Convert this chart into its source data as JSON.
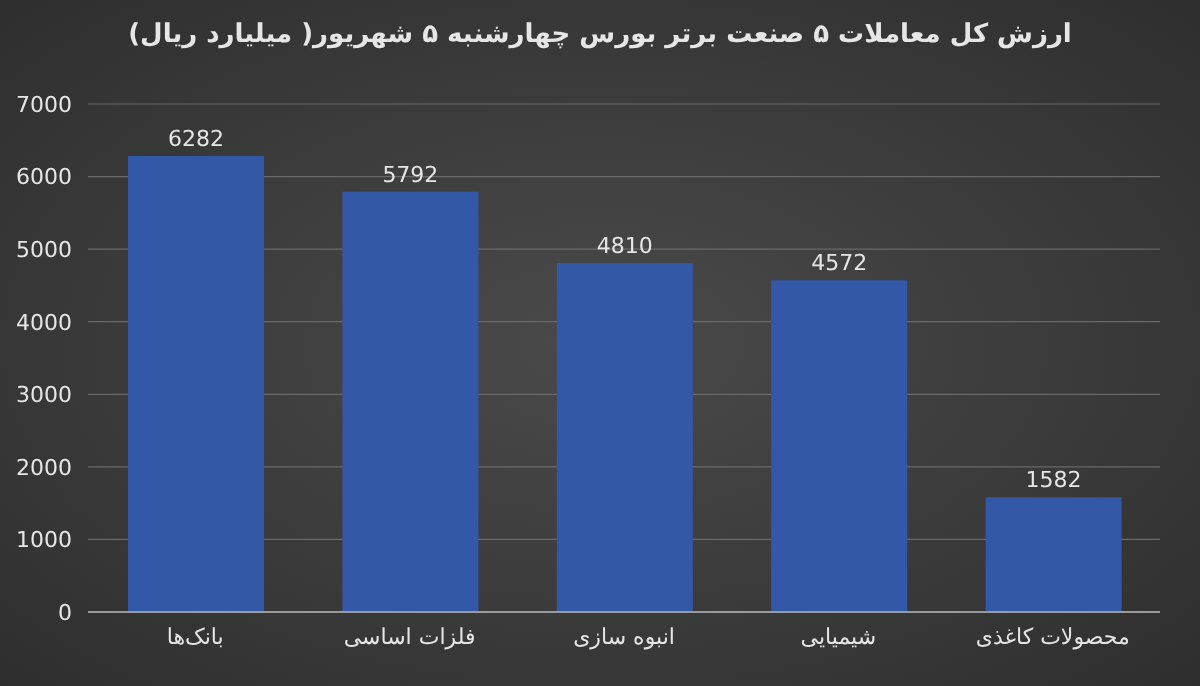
{
  "chart_data": {
    "type": "bar",
    "title": "ارزش کل معاملات ۵ صنعت برتر بورس چهارشنبه ۵ شهریور( میلیارد ریال)",
    "categories": [
      "بانک‌ها",
      "فلزات اساسی",
      "انبوه سازی",
      "شیمیایی",
      "محصولات کاغذی"
    ],
    "values": [
      6282,
      5792,
      4810,
      4572,
      1582
    ],
    "color": "#3358a8",
    "ylim": [
      0,
      7000
    ],
    "yticks": [
      0,
      1000,
      2000,
      3000,
      4000,
      5000,
      6000,
      7000
    ],
    "grid": "y",
    "data_labels": true
  }
}
